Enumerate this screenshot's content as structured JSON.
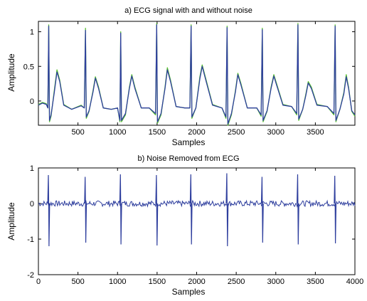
{
  "colors": {
    "clean": "#2f3f9e",
    "noisy": "#56c02e",
    "axis": "#000000"
  },
  "chart_data": [
    {
      "type": "line",
      "title": "a) ECG signal with and without noise",
      "xlabel": "Samples",
      "ylabel": "Amplitude",
      "xlim": [
        0,
        4000
      ],
      "ylim": [
        -0.35,
        1.15
      ],
      "xticks": [
        500,
        1000,
        1500,
        2000,
        2500,
        3000,
        3500
      ],
      "yticks": [
        0,
        0.5,
        1
      ],
      "ytick_labels": [
        "0",
        "0.5",
        "1"
      ],
      "grid": false,
      "beats_r_peak_samples": [
        130,
        595,
        1040,
        1495,
        1930,
        2385,
        2830,
        3280,
        3750
      ],
      "series": [
        {
          "points": [
            [
              0,
              -0.05
            ],
            [
              50,
              -0.02
            ],
            [
              100,
              -0.04
            ],
            [
              120,
              -0.1
            ],
            [
              130,
              1.1
            ],
            [
              140,
              -0.3
            ],
            [
              160,
              -0.22
            ],
            [
              200,
              0.15
            ],
            [
              235,
              0.45
            ],
            [
              270,
              0.3
            ],
            [
              320,
              -0.05
            ],
            [
              420,
              -0.12
            ],
            [
              540,
              -0.06
            ],
            [
              580,
              -0.1
            ],
            [
              595,
              1.05
            ],
            [
              605,
              -0.25
            ],
            [
              640,
              -0.15
            ],
            [
              690,
              0.15
            ],
            [
              720,
              0.35
            ],
            [
              760,
              0.2
            ],
            [
              820,
              -0.1
            ],
            [
              920,
              -0.12
            ],
            [
              1000,
              -0.1
            ],
            [
              1030,
              -0.3
            ],
            [
              1040,
              1.0
            ],
            [
              1050,
              -0.3
            ],
            [
              1100,
              -0.2
            ],
            [
              1150,
              0.2
            ],
            [
              1180,
              0.38
            ],
            [
              1220,
              0.2
            ],
            [
              1300,
              -0.1
            ],
            [
              1400,
              -0.1
            ],
            [
              1480,
              -0.2
            ],
            [
              1495,
              1.12
            ],
            [
              1505,
              -0.32
            ],
            [
              1550,
              -0.2
            ],
            [
              1600,
              0.2
            ],
            [
              1630,
              0.48
            ],
            [
              1670,
              0.3
            ],
            [
              1740,
              -0.08
            ],
            [
              1850,
              -0.1
            ],
            [
              1915,
              -0.1
            ],
            [
              1930,
              1.1
            ],
            [
              1940,
              -0.25
            ],
            [
              1990,
              -0.1
            ],
            [
              2040,
              0.35
            ],
            [
              2070,
              0.52
            ],
            [
              2120,
              0.3
            ],
            [
              2200,
              -0.05
            ],
            [
              2320,
              -0.1
            ],
            [
              2370,
              -0.25
            ],
            [
              2385,
              1.08
            ],
            [
              2395,
              -0.35
            ],
            [
              2440,
              -0.2
            ],
            [
              2490,
              0.15
            ],
            [
              2520,
              0.4
            ],
            [
              2560,
              0.25
            ],
            [
              2640,
              -0.1
            ],
            [
              2760,
              -0.1
            ],
            [
              2815,
              -0.22
            ],
            [
              2830,
              1.05
            ],
            [
              2840,
              -0.3
            ],
            [
              2890,
              -0.15
            ],
            [
              2940,
              0.2
            ],
            [
              2975,
              0.38
            ],
            [
              3010,
              0.25
            ],
            [
              3090,
              -0.05
            ],
            [
              3200,
              -0.08
            ],
            [
              3265,
              -0.2
            ],
            [
              3280,
              1.12
            ],
            [
              3290,
              -0.28
            ],
            [
              3340,
              -0.12
            ],
            [
              3380,
              0.1
            ],
            [
              3410,
              0.28
            ],
            [
              3450,
              0.2
            ],
            [
              3520,
              -0.05
            ],
            [
              3650,
              -0.08
            ],
            [
              3735,
              -0.2
            ],
            [
              3750,
              1.1
            ],
            [
              3760,
              -0.3
            ],
            [
              3810,
              -0.12
            ],
            [
              3860,
              0.12
            ],
            [
              3890,
              0.38
            ],
            [
              3920,
              0.2
            ],
            [
              3960,
              -0.15
            ],
            [
              4000,
              -0.22
            ]
          ]
        },
        {
          "points": [
            [
              0,
              -0.06
            ],
            [
              50,
              -0.03
            ],
            [
              100,
              -0.05
            ],
            [
              120,
              -0.1
            ],
            [
              130,
              1.08
            ],
            [
              140,
              -0.28
            ],
            [
              160,
              -0.2
            ],
            [
              200,
              0.12
            ],
            [
              235,
              0.42
            ],
            [
              270,
              0.28
            ],
            [
              320,
              -0.06
            ],
            [
              420,
              -0.12
            ],
            [
              540,
              -0.07
            ],
            [
              580,
              -0.1
            ],
            [
              595,
              1.02
            ],
            [
              605,
              -0.23
            ],
            [
              640,
              -0.14
            ],
            [
              690,
              0.13
            ],
            [
              720,
              0.33
            ],
            [
              760,
              0.18
            ],
            [
              820,
              -0.1
            ],
            [
              920,
              -0.12
            ],
            [
              1000,
              -0.1
            ],
            [
              1030,
              -0.28
            ],
            [
              1040,
              0.98
            ],
            [
              1050,
              -0.28
            ],
            [
              1100,
              -0.18
            ],
            [
              1150,
              0.18
            ],
            [
              1180,
              0.36
            ],
            [
              1220,
              0.18
            ],
            [
              1300,
              -0.1
            ],
            [
              1400,
              -0.1
            ],
            [
              1480,
              -0.18
            ],
            [
              1495,
              1.1
            ],
            [
              1505,
              -0.3
            ],
            [
              1550,
              -0.18
            ],
            [
              1600,
              0.18
            ],
            [
              1630,
              0.45
            ],
            [
              1670,
              0.28
            ],
            [
              1740,
              -0.08
            ],
            [
              1850,
              -0.1
            ],
            [
              1915,
              -0.1
            ],
            [
              1930,
              1.08
            ],
            [
              1940,
              -0.23
            ],
            [
              1990,
              -0.1
            ],
            [
              2040,
              0.32
            ],
            [
              2070,
              0.5
            ],
            [
              2120,
              0.28
            ],
            [
              2200,
              -0.06
            ],
            [
              2320,
              -0.1
            ],
            [
              2370,
              -0.23
            ],
            [
              2385,
              1.06
            ],
            [
              2395,
              -0.33
            ],
            [
              2440,
              -0.18
            ],
            [
              2490,
              0.13
            ],
            [
              2520,
              0.38
            ],
            [
              2560,
              0.23
            ],
            [
              2640,
              -0.1
            ],
            [
              2760,
              -0.1
            ],
            [
              2815,
              -0.2
            ],
            [
              2830,
              1.03
            ],
            [
              2840,
              -0.28
            ],
            [
              2890,
              -0.14
            ],
            [
              2940,
              0.18
            ],
            [
              2975,
              0.36
            ],
            [
              3010,
              0.23
            ],
            [
              3090,
              -0.06
            ],
            [
              3200,
              -0.08
            ],
            [
              3265,
              -0.18
            ],
            [
              3280,
              1.1
            ],
            [
              3290,
              -0.26
            ],
            [
              3340,
              -0.12
            ],
            [
              3380,
              0.08
            ],
            [
              3410,
              0.26
            ],
            [
              3450,
              0.18
            ],
            [
              3520,
              -0.06
            ],
            [
              3650,
              -0.08
            ],
            [
              3735,
              -0.18
            ],
            [
              3750,
              1.08
            ],
            [
              3760,
              -0.28
            ],
            [
              3810,
              -0.12
            ],
            [
              3860,
              0.1
            ],
            [
              3890,
              0.35
            ],
            [
              3920,
              0.18
            ],
            [
              3960,
              -0.14
            ],
            [
              4000,
              -0.2
            ]
          ]
        }
      ]
    },
    {
      "type": "line",
      "title": "b) Noise Removed from ECG",
      "xlabel": "Samples",
      "ylabel": "Amplitude",
      "xlim": [
        0,
        4000
      ],
      "ylim": [
        -2,
        1
      ],
      "xticks": [
        0,
        500,
        1000,
        1500,
        2000,
        2500,
        3000,
        3500,
        4000
      ],
      "yticks": [
        -2,
        -1,
        0,
        1
      ],
      "ytick_labels": [
        "-2",
        "-1",
        "0",
        "1"
      ],
      "grid": false,
      "spikes": [
        {
          "x": 130,
          "max": 0.8,
          "min": -1.2
        },
        {
          "x": 595,
          "max": 0.75,
          "min": -1.1
        },
        {
          "x": 1040,
          "max": 0.82,
          "min": -1.15
        },
        {
          "x": 1495,
          "max": 0.8,
          "min": -1.18
        },
        {
          "x": 1930,
          "max": 0.82,
          "min": -1.15
        },
        {
          "x": 2385,
          "max": 0.85,
          "min": -1.2
        },
        {
          "x": 2830,
          "max": 0.75,
          "min": -1.1
        },
        {
          "x": 3280,
          "max": 0.82,
          "min": -1.15
        },
        {
          "x": 3750,
          "max": 0.78,
          "min": -1.12
        }
      ],
      "baseline_noise_amplitude": 0.08
    }
  ]
}
